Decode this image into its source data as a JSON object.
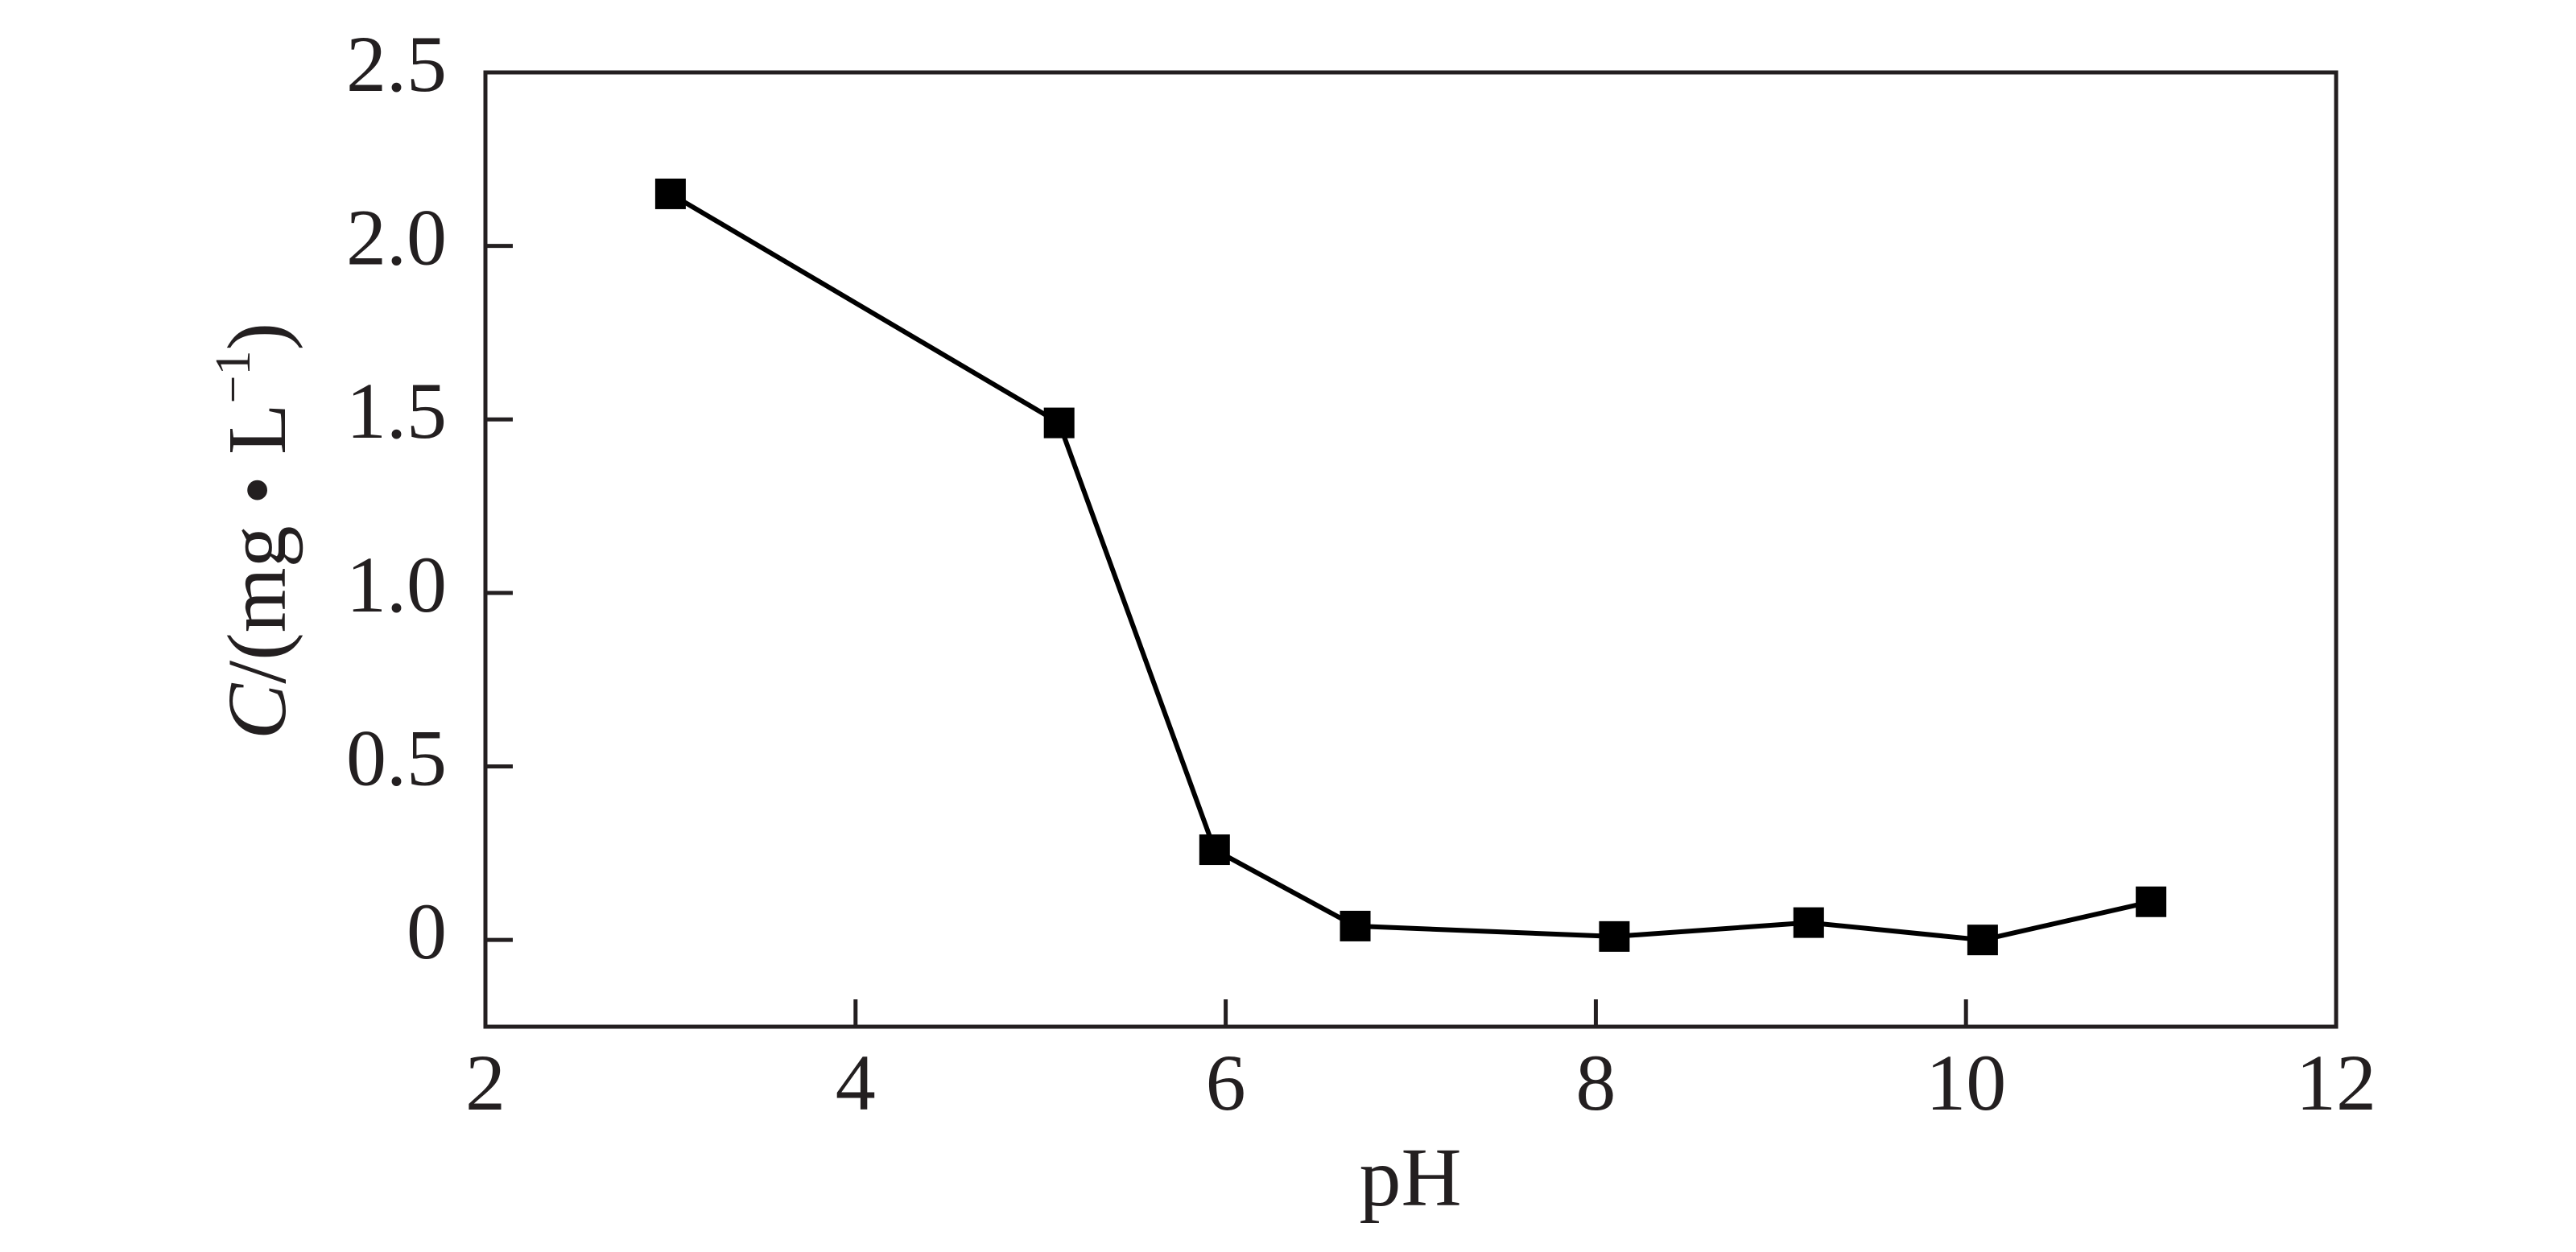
{
  "chart_data": {
    "type": "line",
    "xlabel": "pH",
    "ylabel": {
      "italic": "C",
      "text": "/(mg • L",
      "superscript": "−1",
      "close": ")"
    },
    "x": [
      3.0,
      5.1,
      5.94,
      6.7,
      8.1,
      9.15,
      10.09,
      11.0
    ],
    "series": [
      {
        "color": "#000000",
        "values": [
          2.15,
          1.49,
          0.26,
          0.04,
          0.01,
          0.05,
          0.0,
          0.11
        ]
      }
    ],
    "xlim": [
      2,
      12
    ],
    "xticks": [
      2,
      4,
      6,
      8,
      10,
      12
    ],
    "ylim": [
      -0.25,
      2.5
    ],
    "yticks": [
      0,
      0.5,
      {
        "value": 1,
        "label": "1.0"
      },
      1.5,
      {
        "value": 2,
        "label": "2.0"
      },
      2.5
    ],
    "grid": false
  }
}
